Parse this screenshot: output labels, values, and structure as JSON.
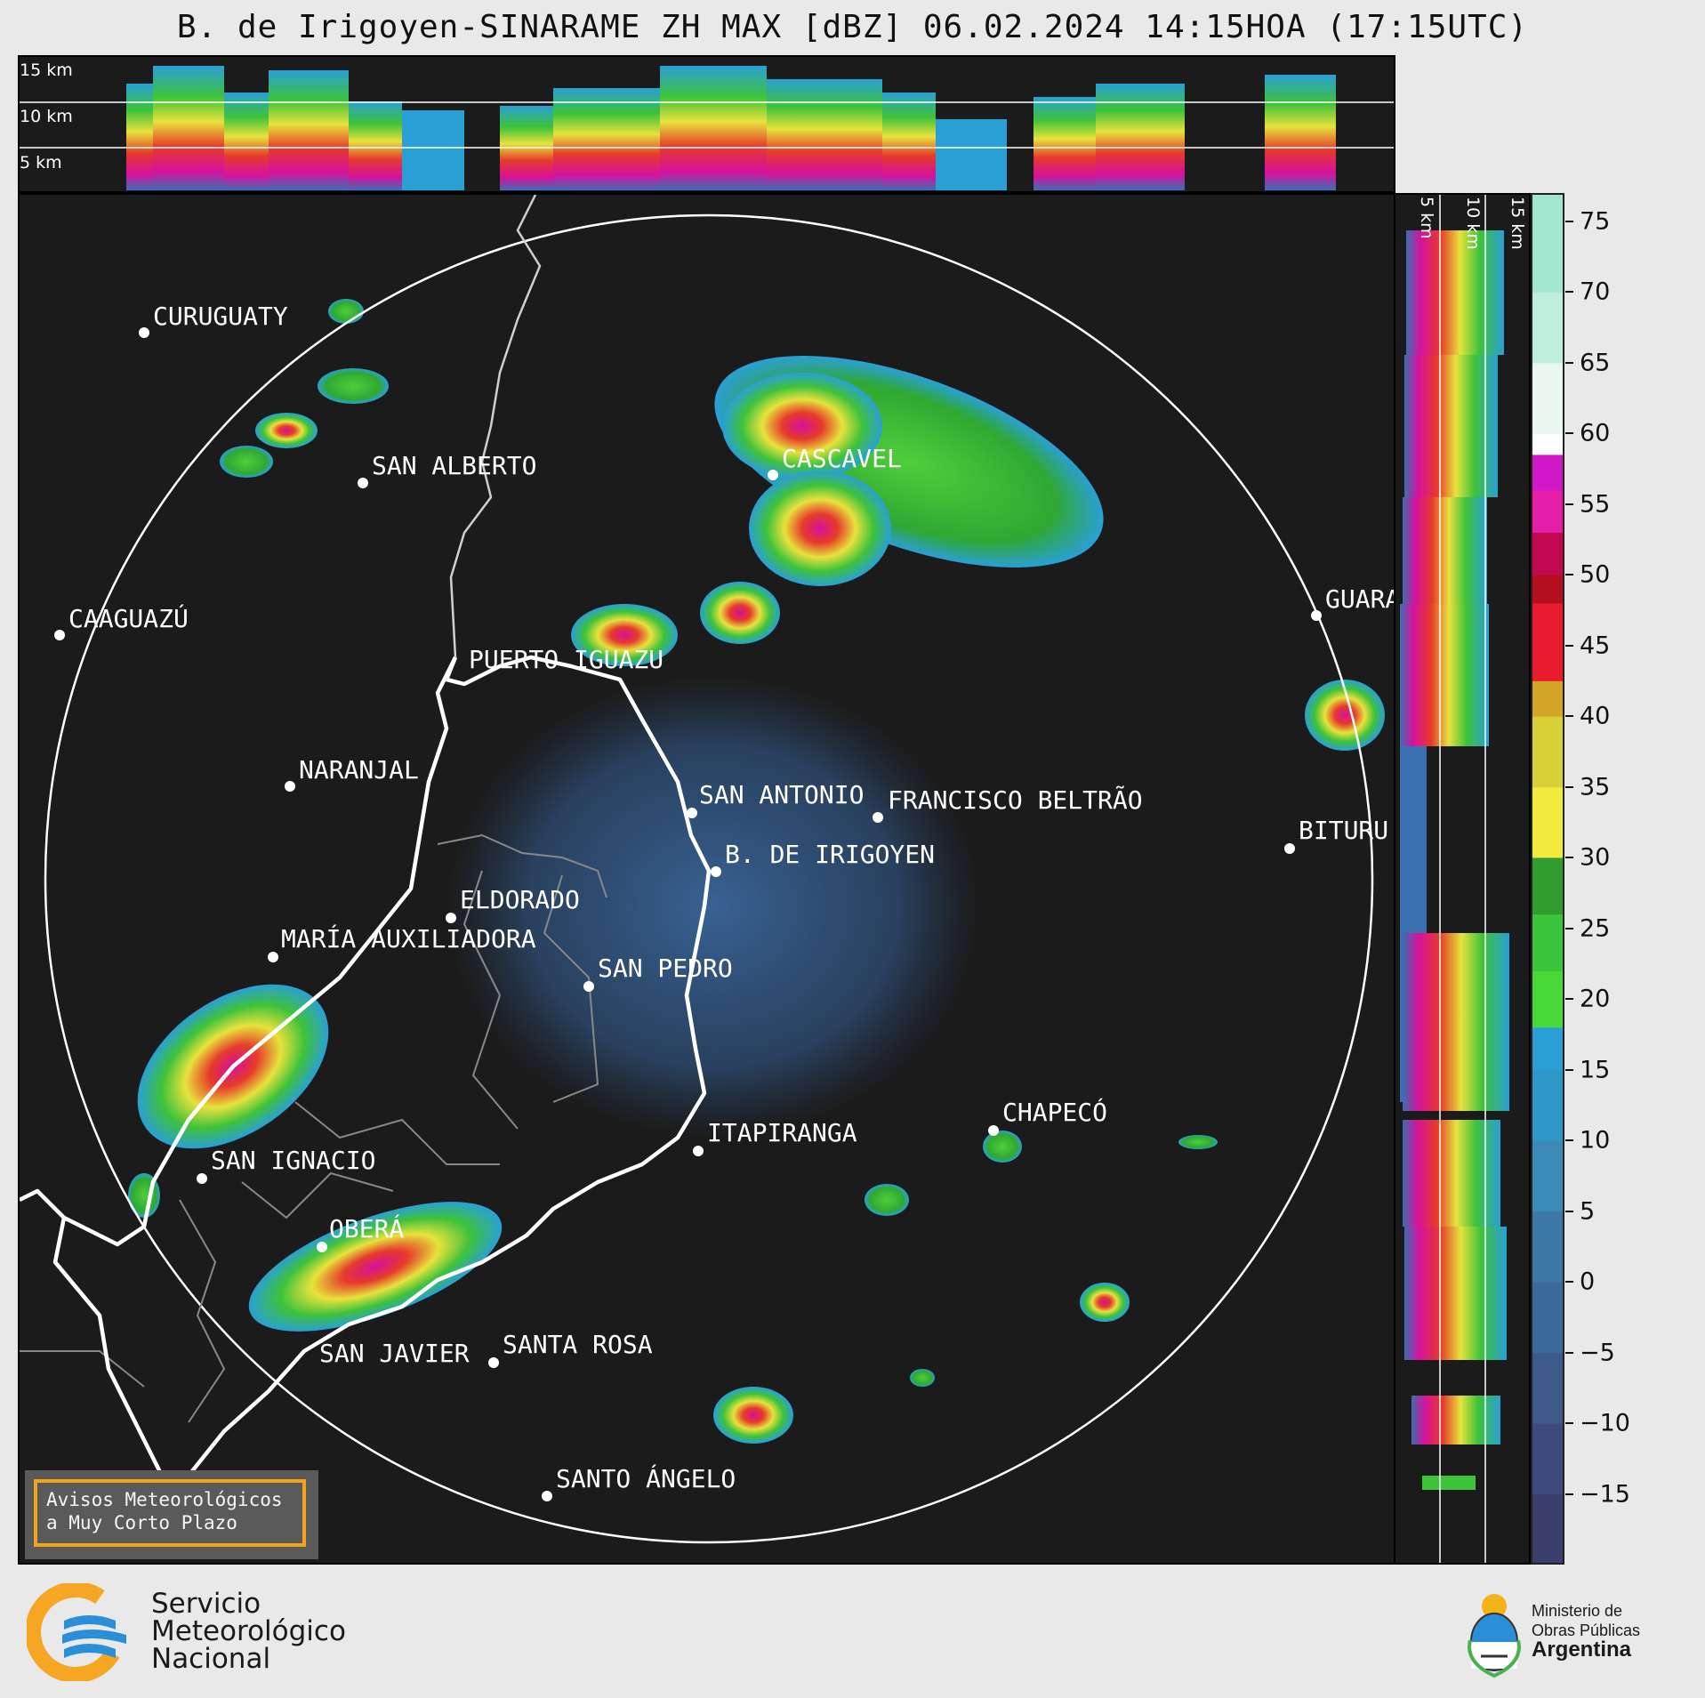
{
  "title": "B. de Irigoyen-SINARAME ZH MAX [dBZ] 06.02.2024 14:15HOA (17:15UTC)",
  "top_panel": {
    "altitude_labels": [
      "15 km",
      "10 km",
      "5 km"
    ]
  },
  "side_panel": {
    "altitude_labels": [
      "5 km",
      "10 km",
      "15 km"
    ]
  },
  "colorbar": {
    "ticks": [
      "75",
      "70",
      "65",
      "60",
      "55",
      "50",
      "45",
      "40",
      "35",
      "30",
      "25",
      "20",
      "15",
      "10",
      "5",
      "0",
      "−5",
      "−10",
      "−15"
    ],
    "range": [
      -20,
      77
    ],
    "unit": "dBZ"
  },
  "cities": [
    {
      "name": "CURUGUATY"
    },
    {
      "name": "SAN ALBERTO"
    },
    {
      "name": "CASCAVEL"
    },
    {
      "name": "CAAGUAZÚ"
    },
    {
      "name": "PUERTO IGUAZU"
    },
    {
      "name": "GUARA"
    },
    {
      "name": "NARANJAL"
    },
    {
      "name": "SAN ANTONIO"
    },
    {
      "name": "FRANCISCO BELTRÃO"
    },
    {
      "name": "BITURU"
    },
    {
      "name": "B. DE IRIGOYEN"
    },
    {
      "name": "ELDORADO"
    },
    {
      "name": "MARÍA AUXILIADORA"
    },
    {
      "name": "SAN PEDRO"
    },
    {
      "name": "CHAPECÓ"
    },
    {
      "name": "ITAPIRANGA"
    },
    {
      "name": "SAN IGNACIO"
    },
    {
      "name": "OBERÁ"
    },
    {
      "name": "SAN JAVIER"
    },
    {
      "name": "SANTA ROSA"
    },
    {
      "name": "SANTO ÁNGELO"
    }
  ],
  "aviso": {
    "line1": "Avisos Meteorológicos",
    "line2": "a Muy Corto Plazo"
  },
  "footer": {
    "smn_line1": "Servicio",
    "smn_line2": "Meteorológico",
    "smn_line3": "Nacional",
    "ministry_line1": "Ministerio de",
    "ministry_line2": "Obras Públicas",
    "ministry_line3": "Argentina"
  },
  "colors": {
    "background": "#1b1b1b",
    "accent_orange": "#f2a51b",
    "range_ring": "#ffffff"
  }
}
